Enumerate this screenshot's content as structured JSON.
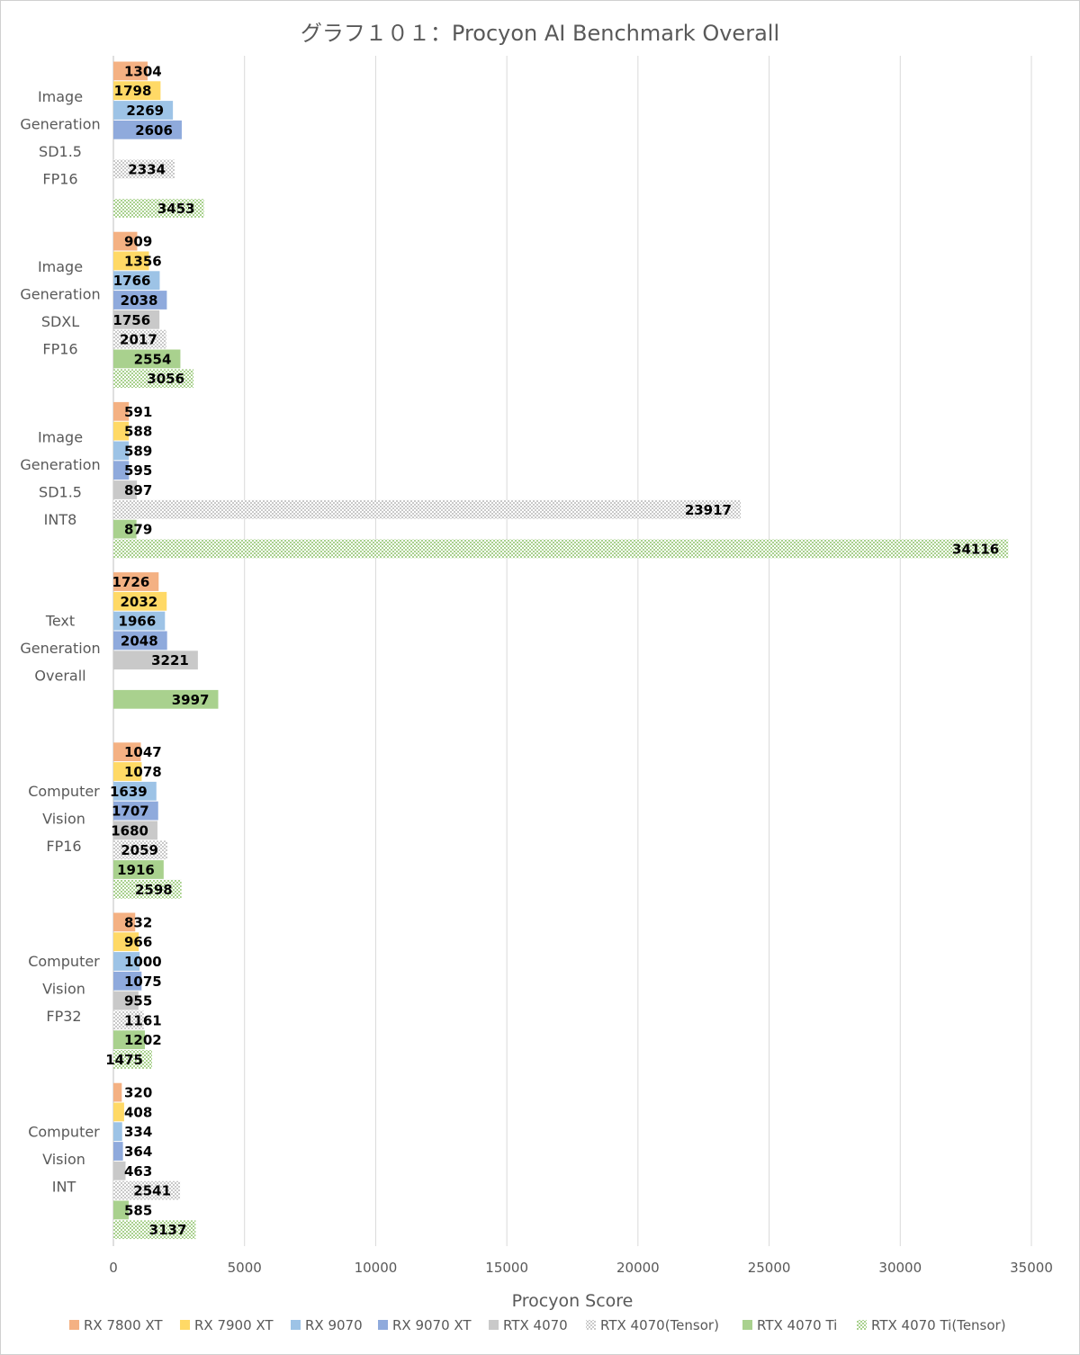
{
  "chart_data": {
    "type": "bar",
    "orientation": "horizontal",
    "title": "グラフ１０１：Procyon AI Benchmark Overall",
    "xlabel": "Procyon Score",
    "ylabel": "",
    "xlim": [
      0,
      35000
    ],
    "xticks": [
      "0",
      "5000",
      "10000",
      "15000",
      "20000",
      "25000",
      "30000",
      "35000"
    ],
    "grid": true,
    "legend_position": "bottom",
    "categories": [
      [
        "Image",
        "Generation",
        "SD1.5",
        "FP16"
      ],
      [
        "Image",
        "Generation",
        "SDXL",
        "FP16"
      ],
      [
        "Image",
        "Generation",
        "SD1.5",
        "INT8"
      ],
      [
        "Text",
        "Generation",
        "Overall"
      ],
      [
        "Computer",
        "Vision",
        "FP16"
      ],
      [
        "Computer",
        "Vision",
        "FP32"
      ],
      [
        "Computer",
        "Vision",
        "INT"
      ]
    ],
    "series": [
      {
        "name": "RX 7800 XT",
        "color": "#f4b183",
        "pattern": "solid",
        "values": [
          1304,
          909,
          591,
          1726,
          1047,
          832,
          320
        ]
      },
      {
        "name": "RX 7900 XT",
        "color": "#ffd966",
        "pattern": "solid",
        "values": [
          1798,
          1356,
          588,
          2032,
          1078,
          966,
          408
        ]
      },
      {
        "name": "RX 9070",
        "color": "#9dc3e6",
        "pattern": "solid",
        "values": [
          2269,
          1766,
          589,
          1966,
          1639,
          1000,
          334
        ]
      },
      {
        "name": "RX 9070 XT",
        "color": "#8faadc",
        "pattern": "solid",
        "values": [
          2606,
          2038,
          595,
          2048,
          1707,
          1075,
          364
        ]
      },
      {
        "name": "RTX 4070",
        "color": "#c9c9c9",
        "pattern": "solid",
        "values": [
          null,
          1756,
          897,
          3221,
          1680,
          955,
          463
        ]
      },
      {
        "name": "RTX 4070(Tensor)",
        "color": "#c9c9c9",
        "pattern": "checker",
        "values": [
          2334,
          2017,
          23917,
          null,
          2059,
          1161,
          2541
        ]
      },
      {
        "name": "RTX 4070 Ti",
        "color": "#a9d18e",
        "pattern": "solid",
        "values": [
          null,
          2554,
          879,
          3997,
          1916,
          1202,
          585
        ]
      },
      {
        "name": "RTX 4070 Ti(Tensor)",
        "color": "#a9d18e",
        "pattern": "checker",
        "values": [
          3453,
          3056,
          34116,
          null,
          2598,
          1475,
          3137
        ]
      }
    ]
  }
}
